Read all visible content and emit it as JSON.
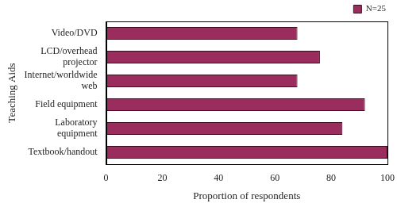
{
  "chart_data": {
    "type": "bar",
    "orientation": "horizontal",
    "x_label": "Proportion of respondents",
    "y_label": "Teaching Aids",
    "categories": [
      "Video/DVD",
      "LCD/overhead projector",
      "Internet/worldwide web",
      "Field equipment",
      "Laboratory equipment",
      "Textbook/handout"
    ],
    "series": [
      {
        "name": "N=25",
        "color": "#9b2d5e",
        "values": [
          68,
          76,
          68,
          92,
          84,
          100
        ]
      }
    ],
    "xlim": [
      0,
      100
    ],
    "xticks": [
      0,
      20,
      40,
      60,
      80,
      100
    ],
    "grid": false,
    "legend": "upper right"
  }
}
